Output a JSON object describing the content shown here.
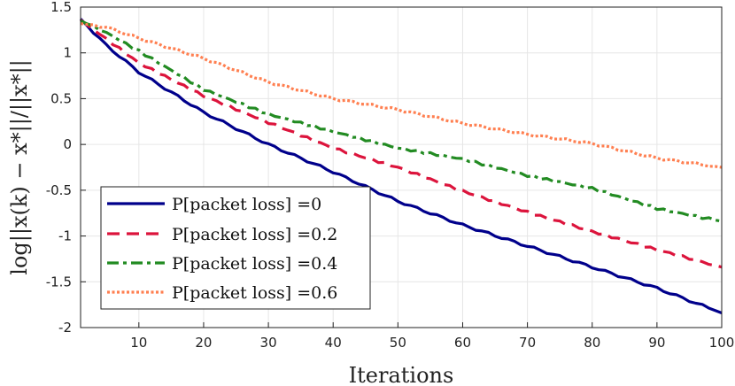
{
  "chart_data": {
    "type": "line",
    "title": "",
    "xlabel": "Iterations",
    "ylabel": "log||x(k) − x*||/||x*||",
    "xlim": [
      1,
      100
    ],
    "ylim": [
      -2,
      1.5
    ],
    "xticks": [
      10,
      20,
      30,
      40,
      50,
      60,
      70,
      80,
      90,
      100
    ],
    "yticks": [
      1.5,
      1,
      0.5,
      0,
      -0.5,
      -1,
      -1.5,
      -2
    ],
    "ytick_labels": [
      "1.5",
      "1",
      "0.5",
      "0",
      "-0.5",
      "-1",
      "-1.5",
      "-2"
    ],
    "grid": true,
    "legend_position": "bottom-left",
    "series": [
      {
        "name": "P[packet loss] =0",
        "legend_main": "P[packet loss] =",
        "legend_value": "0",
        "color": "#00008B",
        "dash": "solid",
        "x": [
          1,
          5,
          10,
          20,
          30,
          40,
          50,
          60,
          70,
          80,
          90,
          100
        ],
        "values": [
          1.37,
          1.08,
          0.79,
          0.35,
          0.0,
          -0.3,
          -0.62,
          -0.88,
          -1.11,
          -1.34,
          -1.57,
          -1.84
        ]
      },
      {
        "name": "P[packet loss] =0.2",
        "legend_main": "P[packet loss] =",
        "legend_value": "0.2",
        "color": "#DC143C",
        "dash": "dashed",
        "x": [
          1,
          5,
          10,
          20,
          30,
          40,
          50,
          60,
          70,
          80,
          90,
          100
        ],
        "values": [
          1.36,
          1.15,
          0.89,
          0.53,
          0.24,
          -0.04,
          -0.25,
          -0.51,
          -0.74,
          -0.95,
          -1.15,
          -1.34
        ]
      },
      {
        "name": "P[packet loss] =0.4",
        "legend_main": "P[packet loss] =",
        "legend_value": "0.4",
        "color": "#228B22",
        "dash": "dashdot",
        "x": [
          1,
          5,
          10,
          20,
          30,
          40,
          50,
          60,
          70,
          80,
          90,
          100
        ],
        "values": [
          1.35,
          1.22,
          1.02,
          0.6,
          0.33,
          0.14,
          -0.04,
          -0.16,
          -0.34,
          -0.48,
          -0.7,
          -0.84
        ]
      },
      {
        "name": "P[packet loss] =0.6",
        "legend_main": "P[packet loss] =",
        "legend_value": "0.6",
        "color": "#FF7F50",
        "dash": "dotted",
        "x": [
          1,
          5,
          10,
          20,
          30,
          40,
          50,
          60,
          70,
          80,
          90,
          100
        ],
        "values": [
          1.32,
          1.28,
          1.16,
          0.94,
          0.68,
          0.5,
          0.38,
          0.23,
          0.11,
          0.01,
          -0.15,
          -0.25
        ]
      }
    ]
  }
}
